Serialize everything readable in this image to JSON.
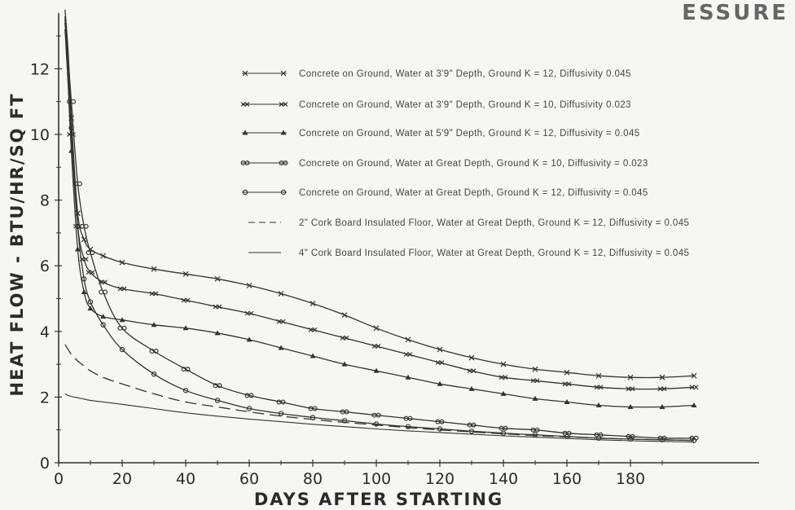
{
  "header_fragment": "ESSURE",
  "chart_data": {
    "type": "line",
    "xlabel": "DAYS AFTER STARTING",
    "ylabel": "HEAT FLOW - BTU/HR/SQ FT",
    "xlim": [
      0,
      200
    ],
    "ylim": [
      0,
      14
    ],
    "xticks": [
      0,
      20,
      40,
      60,
      80,
      100,
      120,
      140,
      160,
      180
    ],
    "yticks": [
      0,
      2,
      4,
      6,
      8,
      10,
      12
    ],
    "legend_position": "top-right",
    "series": [
      {
        "name": "Concrete on Ground, Water at 3'9\" Depth, Ground K = 12, Diffusivity 0.045",
        "marker": "x",
        "x": [
          2,
          3,
          4,
          6,
          8,
          10,
          14,
          20,
          30,
          40,
          50,
          60,
          70,
          80,
          90,
          100,
          110,
          120,
          130,
          140,
          150,
          160,
          170,
          180,
          190,
          200
        ],
        "y": [
          13.8,
          12.5,
          10.5,
          7.6,
          6.8,
          6.5,
          6.3,
          6.1,
          5.9,
          5.75,
          5.6,
          5.4,
          5.15,
          4.85,
          4.5,
          4.1,
          3.75,
          3.45,
          3.2,
          3.0,
          2.85,
          2.75,
          2.65,
          2.6,
          2.6,
          2.65
        ]
      },
      {
        "name": "Concrete on Ground, Water at 3'9\" Depth, Ground K = 10, Diffusivity 0.023",
        "marker": "xx",
        "x": [
          2,
          3,
          4,
          6,
          8,
          10,
          14,
          20,
          30,
          40,
          50,
          60,
          70,
          80,
          90,
          100,
          110,
          120,
          130,
          140,
          150,
          160,
          170,
          180,
          190,
          200
        ],
        "y": [
          13.5,
          12.0,
          10.0,
          7.2,
          6.2,
          5.8,
          5.5,
          5.3,
          5.15,
          4.95,
          4.75,
          4.55,
          4.3,
          4.05,
          3.8,
          3.55,
          3.3,
          3.05,
          2.8,
          2.6,
          2.5,
          2.4,
          2.3,
          2.25,
          2.25,
          2.3
        ]
      },
      {
        "name": "Concrete on Ground, Water at 5'9\" Depth, Ground K = 12, Diffusivity = 0.045",
        "marker": "triangle",
        "x": [
          2,
          3,
          4,
          6,
          8,
          10,
          14,
          20,
          30,
          40,
          50,
          60,
          70,
          80,
          90,
          100,
          110,
          120,
          130,
          140,
          150,
          160,
          170,
          180,
          190,
          200
        ],
        "y": [
          13.2,
          11.5,
          9.5,
          6.5,
          5.2,
          4.7,
          4.45,
          4.35,
          4.2,
          4.1,
          3.95,
          3.75,
          3.5,
          3.25,
          3.0,
          2.8,
          2.6,
          2.4,
          2.25,
          2.1,
          1.95,
          1.85,
          1.75,
          1.7,
          1.7,
          1.75
        ]
      },
      {
        "name": "Concrete on Ground, Water at Great Depth, Ground K = 10, Diffusivity = 0.023",
        "marker": "double-circle",
        "x": [
          2,
          3,
          4,
          6,
          8,
          10,
          14,
          20,
          30,
          40,
          50,
          60,
          70,
          80,
          90,
          100,
          110,
          120,
          130,
          140,
          150,
          160,
          170,
          180,
          190,
          200
        ],
        "y": [
          13.6,
          12.3,
          11.0,
          8.5,
          7.2,
          6.4,
          5.2,
          4.1,
          3.4,
          2.85,
          2.35,
          2.05,
          1.85,
          1.65,
          1.55,
          1.45,
          1.35,
          1.25,
          1.15,
          1.05,
          1.0,
          0.9,
          0.85,
          0.8,
          0.75,
          0.75
        ]
      },
      {
        "name": "Concrete on Ground, Water at Great Depth, Ground K = 12, Diffusivity = 0.045",
        "marker": "circle",
        "x": [
          2,
          3,
          4,
          6,
          8,
          10,
          14,
          20,
          30,
          40,
          50,
          60,
          70,
          80,
          90,
          100,
          110,
          120,
          130,
          140,
          150,
          160,
          170,
          180,
          190,
          200
        ],
        "y": [
          13.4,
          12.0,
          10.2,
          7.2,
          5.6,
          4.9,
          4.2,
          3.45,
          2.7,
          2.2,
          1.9,
          1.65,
          1.5,
          1.38,
          1.28,
          1.18,
          1.1,
          1.03,
          0.96,
          0.9,
          0.85,
          0.8,
          0.75,
          0.72,
          0.7,
          0.68
        ]
      },
      {
        "name": "2\" Cork Board Insulated Floor, Water at Great Depth, Ground K = 12, Diffusivity = 0.045",
        "marker": "dashed",
        "x": [
          2,
          3,
          4,
          6,
          8,
          10,
          14,
          20,
          30,
          40,
          50,
          60,
          70,
          80,
          90,
          100,
          110,
          120,
          130,
          140,
          150,
          160,
          170,
          180,
          190,
          200
        ],
        "y": [
          3.6,
          3.45,
          3.3,
          3.1,
          2.95,
          2.8,
          2.6,
          2.4,
          2.1,
          1.85,
          1.7,
          1.55,
          1.42,
          1.32,
          1.23,
          1.15,
          1.07,
          1.0,
          0.94,
          0.88,
          0.83,
          0.79,
          0.75,
          0.72,
          0.7,
          0.68
        ]
      },
      {
        "name": "4\" Cork Board Insulated Floor, Water at Great Depth, Ground K = 12, Diffusivity = 0.045",
        "marker": "solid",
        "x": [
          2,
          3,
          4,
          6,
          8,
          10,
          14,
          20,
          30,
          40,
          50,
          60,
          70,
          80,
          90,
          100,
          110,
          120,
          130,
          140,
          150,
          160,
          170,
          180,
          190,
          200
        ],
        "y": [
          2.1,
          2.05,
          2.02,
          1.98,
          1.94,
          1.9,
          1.85,
          1.78,
          1.65,
          1.52,
          1.42,
          1.33,
          1.25,
          1.17,
          1.1,
          1.03,
          0.97,
          0.92,
          0.87,
          0.82,
          0.78,
          0.74,
          0.7,
          0.67,
          0.65,
          0.63
        ]
      }
    ]
  },
  "legend_text": [
    "Concrete on Ground, Water at 3'9\" Depth, Ground K = 12, Diffusivity 0.045",
    "Concrete on Ground, Water at 3'9\" Depth, Ground K = 10, Diffusivity 0.023",
    "Concrete on Ground, Water at 5'9\" Depth, Ground K = 12, Diffusivity = 0.045",
    "Concrete on Ground, Water at Great Depth, Ground K = 10, Diffusivity = 0.023",
    "Concrete on Ground, Water at Great Depth, Ground K = 12, Diffusivity = 0.045",
    "2\" Cork Board Insulated Floor, Water at Great Depth, Ground K = 12, Diffusivity = 0.045",
    "4\" Cork Board Insulated Floor, Water at Great Depth, Ground K = 12, Diffusivity = 0.045"
  ]
}
